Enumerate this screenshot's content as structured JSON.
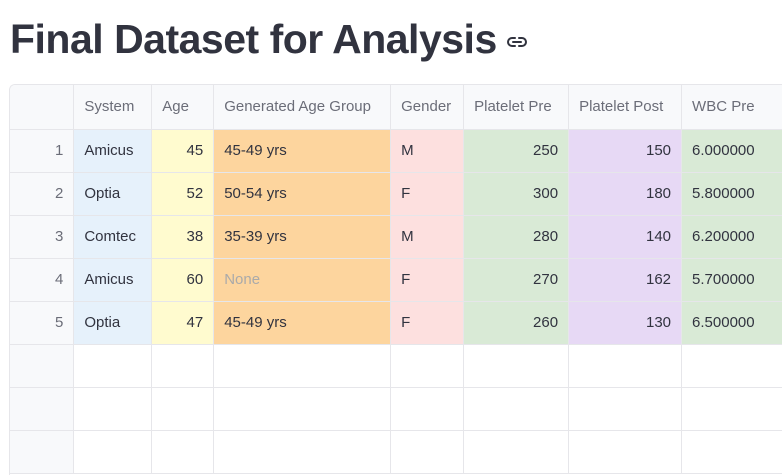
{
  "page": {
    "title": "Final Dataset for Analysis"
  },
  "icons": {
    "anchor": "link-icon"
  },
  "colors": {
    "system": "#e6f1fb",
    "age": "#fffbcf",
    "age_group": "#fdd59e",
    "gender": "#fde0df",
    "platelet_pre": "#d9ead6",
    "platelet_post": "#e7d9f5",
    "wbc_pre": "#d9ead6"
  },
  "table": {
    "columns": [
      "",
      "System",
      "Age",
      "Generated Age Group",
      "Gender",
      "Platelet Pre",
      "Platelet Post",
      "WBC Pre"
    ],
    "rows": [
      {
        "index": "1",
        "system": "Amicus",
        "age": "45",
        "age_group": "45-49 yrs",
        "gender": "M",
        "platelet_pre": "250",
        "platelet_post": "150",
        "wbc_pre": "6.000000"
      },
      {
        "index": "2",
        "system": "Optia",
        "age": "52",
        "age_group": "50-54 yrs",
        "gender": "F",
        "platelet_pre": "300",
        "platelet_post": "180",
        "wbc_pre": "5.800000"
      },
      {
        "index": "3",
        "system": "Comtec",
        "age": "38",
        "age_group": "35-39 yrs",
        "gender": "M",
        "platelet_pre": "280",
        "platelet_post": "140",
        "wbc_pre": "6.200000"
      },
      {
        "index": "4",
        "system": "Amicus",
        "age": "60",
        "age_group": "None",
        "gender": "F",
        "platelet_pre": "270",
        "platelet_post": "162",
        "wbc_pre": "5.700000"
      },
      {
        "index": "5",
        "system": "Optia",
        "age": "47",
        "age_group": "45-49 yrs",
        "gender": "F",
        "platelet_pre": "260",
        "platelet_post": "130",
        "wbc_pre": "6.500000"
      }
    ]
  }
}
